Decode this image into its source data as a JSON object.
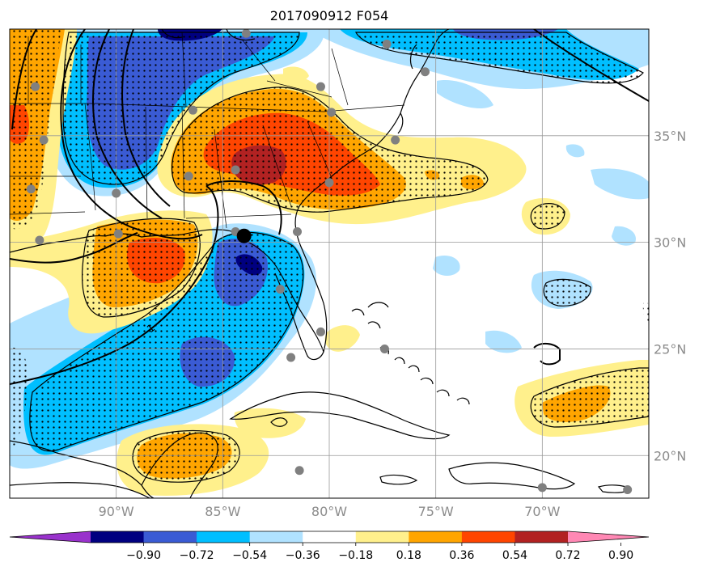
{
  "title": "2017090912 F054",
  "map": {
    "lon_range": [
      -95,
      -65
    ],
    "lat_range": [
      18,
      40
    ],
    "lat_gridlines": [
      20,
      25,
      30,
      35
    ],
    "lon_gridlines": [
      -90,
      -85,
      -80,
      -75,
      -70
    ],
    "lat_labels": [
      "20°N",
      "25°N",
      "30°N",
      "35°N"
    ],
    "lon_labels": [
      "90°W",
      "85°W",
      "80°W",
      "75°W",
      "70°W"
    ],
    "contour_label": "1",
    "storm_center": {
      "lon": -84.0,
      "lat": 30.3
    },
    "stations": [
      [
        -83.9,
        39.8
      ],
      [
        -93.8,
        37.3
      ],
      [
        -86.4,
        36.2
      ],
      [
        -80.4,
        37.3
      ],
      [
        -79.9,
        36.1
      ],
      [
        -77.3,
        39.3
      ],
      [
        -75.5,
        38.0
      ],
      [
        -93.4,
        34.8
      ],
      [
        -94.0,
        32.5
      ],
      [
        -90.0,
        32.3
      ],
      [
        -86.6,
        33.1
      ],
      [
        -84.4,
        33.4
      ],
      [
        -80.0,
        32.8
      ],
      [
        -76.9,
        34.8
      ],
      [
        -93.6,
        30.1
      ],
      [
        -89.9,
        30.4
      ],
      [
        -84.4,
        30.5
      ],
      [
        -81.5,
        30.5
      ],
      [
        -82.3,
        27.8
      ],
      [
        -80.4,
        25.8
      ],
      [
        -81.8,
        24.6
      ],
      [
        -77.4,
        25.0
      ],
      [
        -81.4,
        19.3
      ],
      [
        -70.0,
        18.5
      ],
      [
        -66.0,
        18.4
      ]
    ]
  },
  "colorbar": {
    "colors": [
      "#9932cc",
      "#000080",
      "#3a5bd4",
      "#00bfff",
      "#b0e2ff",
      "#ffffff",
      "#fff08c",
      "#ffa500",
      "#ff4500",
      "#b22222",
      "#ff88b4"
    ],
    "tick_labels": [
      "−0.90",
      "−0.72",
      "−0.54",
      "−0.36",
      "−0.18",
      "0.18",
      "0.36",
      "0.54",
      "0.72",
      "0.90"
    ]
  }
}
